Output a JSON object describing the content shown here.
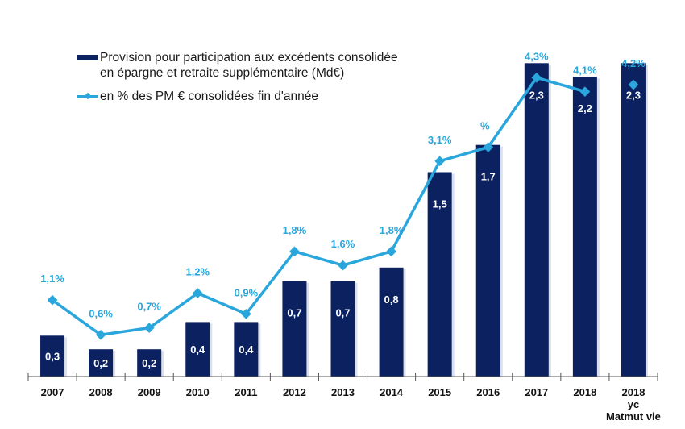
{
  "chart_data": {
    "type": "bar",
    "title": "",
    "xlabel": "",
    "ylabel": "",
    "grid": false,
    "legend_position": "top-left",
    "categories": [
      [
        "2007"
      ],
      [
        "2008"
      ],
      [
        "2009"
      ],
      [
        "2010"
      ],
      [
        "2011"
      ],
      [
        "2012"
      ],
      [
        "2013"
      ],
      [
        "2014"
      ],
      [
        "2015"
      ],
      [
        "2016"
      ],
      [
        "2017"
      ],
      [
        "2018"
      ],
      [
        "2018",
        "yc",
        "Matmut vie"
      ]
    ],
    "series": [
      {
        "name": "Provision pour participation aux excédents consolidée\nen épargne et retraite supplémentaire  (Md€)",
        "kind": "bar",
        "color": "#0c2260",
        "values": [
          0.3,
          0.2,
          0.2,
          0.4,
          0.4,
          0.7,
          0.7,
          0.8,
          1.5,
          1.7,
          2.3,
          2.2,
          2.3
        ],
        "labels": [
          "0,3",
          "0,2",
          "0,2",
          "0,4",
          "0,4",
          "0,7",
          "0,7",
          "0,8",
          "1,5",
          "1,7",
          "2,3",
          "2,2",
          "2,3"
        ]
      },
      {
        "name": "en % des PM € consolidées fin d'année",
        "kind": "line",
        "color": "#29a6dc",
        "values": [
          1.1,
          0.6,
          0.7,
          1.2,
          0.9,
          1.8,
          1.6,
          1.8,
          3.1,
          3.3,
          4.3,
          4.1,
          4.2
        ],
        "labels": [
          "1,1%",
          "0,6%",
          "0,7%",
          "1,2%",
          "0,9%",
          "1,8%",
          "1,6%",
          "1,8%",
          "3,1%",
          "%",
          "4,3%",
          "4,1%",
          "4,2%"
        ],
        "connected_points": 12
      }
    ],
    "y_bar_range": [
      0,
      2.6
    ],
    "y_line_range": [
      0,
      5.2
    ]
  }
}
